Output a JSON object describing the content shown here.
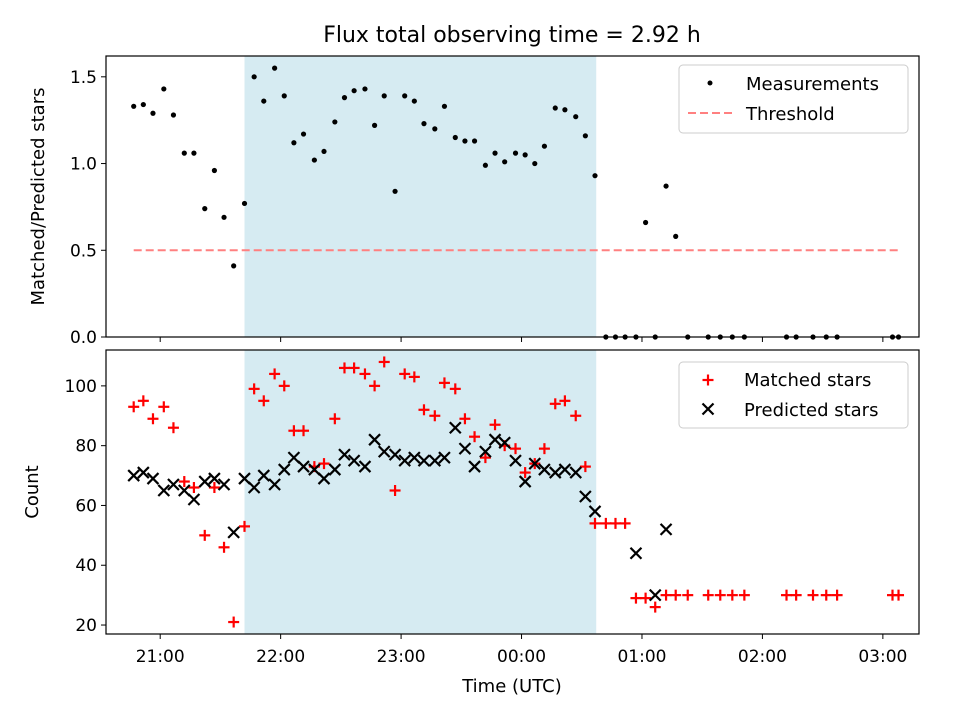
{
  "figure": {
    "title": "Flux total observing time = 2.92 h",
    "xlabel": "Time (UTC)"
  },
  "colors": {
    "shade": "#add8e6",
    "measurement": "#000000",
    "threshold": "#ff8080",
    "matched": "#ff0000",
    "predicted": "#000000"
  },
  "chart_data": [
    {
      "type": "scatter",
      "ylabel": "Matched/Predicted stars",
      "xlim": [
        -0.45,
        6.3
      ],
      "ylim": [
        0,
        1.62
      ],
      "x_axis": "hours after 21:00 UTC",
      "xticks": [
        0,
        1,
        2,
        3,
        4,
        5,
        6
      ],
      "xtick_labels": [],
      "yticks": [
        0,
        0.5,
        1.0,
        1.5
      ],
      "ytick_labels": [
        "0.0",
        "0.5",
        "1.0",
        "1.5"
      ],
      "shaded_interval": [
        0.7,
        3.62
      ],
      "legend": {
        "placement": "top-right",
        "entries": [
          "Measurements",
          "Threshold"
        ]
      },
      "series": [
        {
          "name": "Measurements",
          "marker": "dot",
          "x": [
            -0.22,
            -0.14,
            -0.06,
            0.03,
            0.11,
            0.2,
            0.28,
            0.37,
            0.45,
            0.53,
            0.61,
            0.7,
            0.78,
            0.86,
            0.95,
            1.03,
            1.11,
            1.19,
            1.28,
            1.36,
            1.45,
            1.53,
            1.61,
            1.7,
            1.78,
            1.86,
            1.95,
            2.03,
            2.11,
            2.19,
            2.28,
            2.36,
            2.45,
            2.53,
            2.61,
            2.7,
            2.78,
            2.86,
            2.95,
            3.03,
            3.11,
            3.19,
            3.28,
            3.36,
            3.45,
            3.53,
            3.61,
            3.7,
            3.78,
            3.86,
            3.95,
            4.03,
            4.11,
            4.2,
            4.28,
            4.38,
            4.55,
            4.65,
            4.75,
            4.85,
            5.2,
            5.28,
            5.42,
            5.53,
            5.62,
            6.08,
            6.13
          ],
          "y": [
            1.33,
            1.34,
            1.29,
            1.43,
            1.28,
            1.06,
            1.06,
            0.74,
            0.96,
            0.69,
            0.41,
            0.77,
            1.5,
            1.36,
            1.55,
            1.39,
            1.12,
            1.17,
            1.02,
            1.07,
            1.24,
            1.38,
            1.42,
            1.43,
            1.22,
            1.39,
            0.84,
            1.39,
            1.36,
            1.23,
            1.2,
            1.33,
            1.15,
            1.13,
            1.13,
            0.99,
            1.06,
            1.01,
            1.06,
            1.05,
            1.0,
            1.1,
            1.32,
            1.31,
            1.27,
            1.16,
            0.93,
            0.0,
            0.0,
            0.0,
            0.0,
            0.66,
            0.0,
            0.87,
            0.58,
            0.0,
            0.0,
            0.0,
            0.0,
            0.0,
            0.0,
            0.0,
            0.0,
            0.0,
            0.0,
            0.0,
            0.0
          ]
        },
        {
          "name": "Threshold",
          "marker": "dashed-line",
          "x": [
            -0.22,
            6.13
          ],
          "y": [
            0.5,
            0.5
          ]
        }
      ]
    },
    {
      "type": "scatter",
      "ylabel": "Count",
      "xlim": [
        -0.45,
        6.3
      ],
      "ylim": [
        17,
        112
      ],
      "x_axis": "hours after 21:00 UTC",
      "xticks": [
        0,
        1,
        2,
        3,
        4,
        5,
        6
      ],
      "xtick_labels": [
        "21:00",
        "22:00",
        "23:00",
        "00:00",
        "01:00",
        "02:00",
        "03:00"
      ],
      "yticks": [
        20,
        40,
        60,
        80,
        100
      ],
      "ytick_labels": [
        "20",
        "40",
        "60",
        "80",
        "100"
      ],
      "shaded_interval": [
        0.7,
        3.62
      ],
      "legend": {
        "placement": "top-right",
        "entries": [
          "Matched stars",
          "Predicted stars"
        ]
      },
      "series": [
        {
          "name": "Matched stars",
          "marker": "plus",
          "x": [
            -0.22,
            -0.14,
            -0.06,
            0.03,
            0.11,
            0.2,
            0.28,
            0.37,
            0.45,
            0.53,
            0.61,
            0.7,
            0.78,
            0.86,
            0.95,
            1.03,
            1.11,
            1.19,
            1.28,
            1.36,
            1.45,
            1.53,
            1.61,
            1.7,
            1.78,
            1.86,
            1.95,
            2.03,
            2.11,
            2.19,
            2.28,
            2.36,
            2.45,
            2.53,
            2.61,
            2.7,
            2.78,
            2.86,
            2.95,
            3.03,
            3.11,
            3.19,
            3.28,
            3.36,
            3.45,
            3.53,
            3.61,
            3.7,
            3.78,
            3.86,
            3.95,
            4.03,
            4.11,
            4.2,
            4.28,
            4.38,
            4.55,
            4.65,
            4.75,
            4.85,
            5.2,
            5.28,
            5.42,
            5.53,
            5.62,
            6.08,
            6.13
          ],
          "y": [
            93,
            95,
            89,
            93,
            86,
            68,
            66,
            50,
            66,
            46,
            21,
            53,
            99,
            95,
            104,
            100,
            85,
            85,
            73,
            74,
            89,
            106,
            106,
            104,
            100,
            108,
            65,
            104,
            103,
            92,
            90,
            101,
            99,
            89,
            83,
            76,
            87,
            80,
            79,
            71,
            74,
            79,
            94,
            95,
            90,
            73,
            54,
            54,
            54,
            54,
            29,
            29,
            26,
            30,
            30,
            30,
            30,
            30,
            30,
            30,
            30,
            30,
            30,
            30,
            30,
            30,
            30
          ]
        },
        {
          "name": "Predicted stars",
          "marker": "x",
          "x": [
            -0.22,
            -0.14,
            -0.06,
            0.03,
            0.11,
            0.2,
            0.28,
            0.37,
            0.45,
            0.53,
            0.61,
            0.7,
            0.78,
            0.86,
            0.95,
            1.03,
            1.11,
            1.19,
            1.28,
            1.36,
            1.45,
            1.53,
            1.61,
            1.7,
            1.78,
            1.86,
            1.95,
            2.03,
            2.11,
            2.19,
            2.28,
            2.36,
            2.45,
            2.53,
            2.61,
            2.7,
            2.78,
            2.86,
            2.95,
            3.03,
            3.11,
            3.19,
            3.28,
            3.36,
            3.45,
            3.53,
            3.61,
            3.95,
            4.11,
            4.2
          ],
          "y": [
            70,
            71,
            69,
            65,
            67,
            65,
            62,
            68,
            69,
            67,
            51,
            69,
            66,
            70,
            67,
            72,
            76,
            73,
            72,
            69,
            72,
            77,
            75,
            73,
            82,
            78,
            77,
            75,
            76,
            75,
            75,
            76,
            86,
            79,
            73,
            78,
            82,
            81,
            75,
            68,
            74,
            72,
            71,
            72,
            71,
            63,
            58,
            44,
            30,
            52
          ]
        }
      ]
    }
  ]
}
